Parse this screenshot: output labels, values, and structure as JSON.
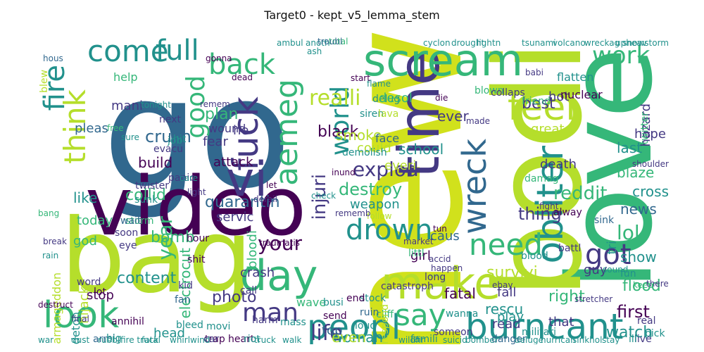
{
  "title": "Target0 - kept_v5_lemma_stem",
  "colors": {
    "yellow": "#d1e11c",
    "lime": "#b5de2b",
    "green": "#35b779",
    "teal": "#21918c",
    "blue": "#31688e",
    "indigo": "#443983",
    "purple": "#440154"
  },
  "words": [
    "go",
    "new",
    "love",
    "bodi",
    "bag",
    "video",
    "time",
    "scream",
    "wreck",
    "obliter",
    "look",
    "day",
    "make",
    "burn",
    "cant",
    "peopl",
    "fire",
    "fuck",
    "think",
    "feel",
    "back",
    "come",
    "full",
    "work",
    "vi",
    "aemeg",
    "world",
    "drown",
    "got",
    "need",
    "say",
    "man",
    "life",
    "your",
    "good",
    "year",
    "explod",
    "destroy",
    "injuri",
    "lol",
    "thing",
    "watch",
    "realli",
    "reddit",
    "black",
    "crush",
    "quarantin",
    "collid",
    "electrocut",
    "bomb",
    "content",
    "survivi",
    "fatal",
    "rescu",
    "show",
    "first",
    "right",
    "flood",
    "photo",
    "woman",
    "even",
    "plan",
    "best",
    "ever",
    "last",
    "blaze",
    "news",
    "cross",
    "school",
    "death",
    "weapon",
    "smoke",
    "face",
    "fear",
    "attack",
    "build",
    "like",
    "today",
    "god",
    "hijack",
    "stop",
    "head",
    "read",
    "play",
    "fall",
    "top",
    "servic",
    "bloodi",
    "girl",
    "caus",
    "help",
    "mani",
    "pleas",
    "he",
    "wound",
    "could",
    "everi",
    "demolish",
    "hope",
    "hazard",
    "hot",
    "great",
    "twitter",
    "nuclear",
    "flatten",
    "wave",
    "crash",
    "stock",
    "cliff",
    "danger",
    "trap",
    "heart",
    "car",
    "guy",
    "that",
    "tri",
    "sink",
    "fun",
    "hour",
    "shit",
    "siren",
    "delug",
    "lava",
    "storm",
    "desol",
    "armageddon",
    "deton",
    "annihil",
    "kid",
    "fan",
    "armi",
    "big",
    "word",
    "lot",
    "call",
    "harm",
    "mass",
    "ruin",
    "loud",
    "catastroph",
    "long",
    "wanna",
    "respond",
    "busi",
    "send",
    "bleed",
    "battl",
    "militari",
    "live",
    "ill",
    "pick",
    "real",
    "alway",
    "end",
    "movi",
    "twister",
    "sunk",
    "wait",
    "soon",
    "eye",
    "littl",
    "riot",
    "famili",
    "someon",
    "damag",
    "friend",
    "blood",
    "panic",
    "evacu",
    "hit",
    "next",
    "job",
    "hous",
    "gonna",
    "break",
    "rain",
    "bang",
    "blew",
    "blown",
    "collaps",
    "flame",
    "dead",
    "remem",
    "free",
    "sure",
    "tonight",
    "die",
    "made",
    "start",
    "follow",
    "rememb",
    "check",
    "let",
    "care",
    "light",
    "accid",
    "happen",
    "anoth",
    "total",
    "troubl",
    "tun",
    "market",
    "ebay",
    "keep",
    "there",
    "sound",
    "fight",
    "babi",
    "shoulder",
    "stretcher",
    "inund",
    "derail",
    "traumatis",
    "destruct",
    "final",
    "fire truck",
    "fatal",
    "whirlwind",
    "wildfir",
    "suicid",
    "bomber",
    "deluge",
    "hurrican",
    "sinkhol",
    "stay",
    "walk",
    "truck",
    "war",
    "dust",
    "rubbl",
    "ambul",
    "ash",
    "cyclon",
    "drought",
    "lightn",
    "tsunami",
    "volcano",
    "wreckag",
    "upheav",
    "snowstorm"
  ]
}
